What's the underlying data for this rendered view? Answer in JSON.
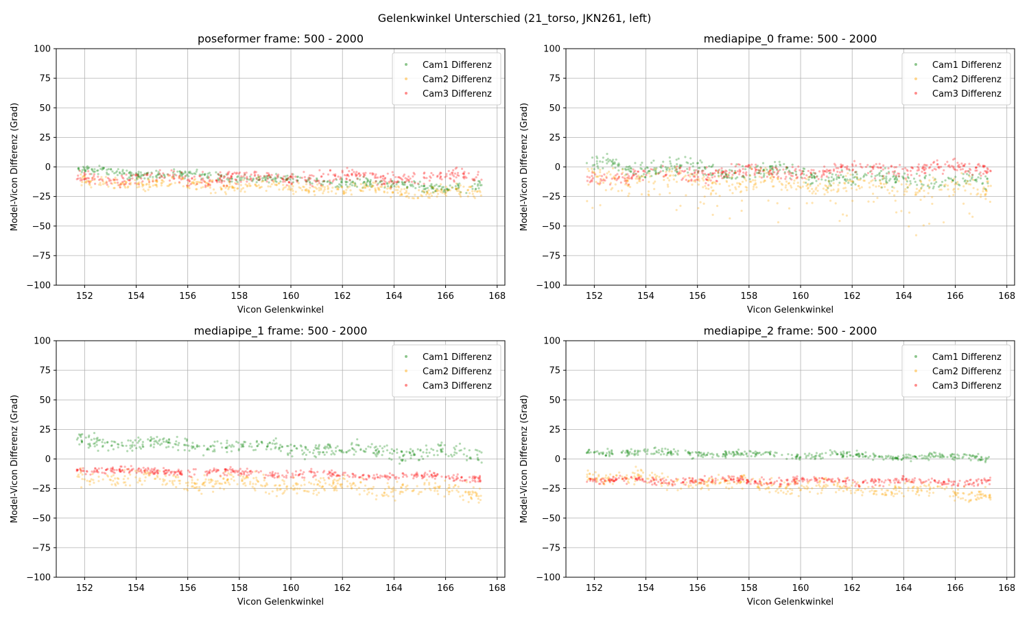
{
  "figure_title": "Gelenkwinkel Unterschied (21_torso, JKN261, left)",
  "colors": {
    "Cam1 Differenz": "#008000",
    "Cam2 Differenz": "#ffa500",
    "Cam3 Differenz": "#ff0000"
  },
  "chart_data": [
    {
      "type": "scatter",
      "title": "poseformer frame: 500 - 2000",
      "xlabel": "Vicon Gelenkwinkel",
      "ylabel": "Model-Vicon Differenz (Grad)",
      "xlim": [
        150.9,
        168.3
      ],
      "ylim": [
        -100,
        100
      ],
      "xticks": [
        152,
        154,
        156,
        158,
        160,
        162,
        164,
        166,
        168
      ],
      "yticks": [
        -100,
        -75,
        -50,
        -25,
        0,
        25,
        50,
        75,
        100
      ],
      "grid": true,
      "legend_position": "top-right",
      "series": [
        {
          "name": "Cam1 Differenz",
          "x_range": [
            151.7,
            167.4
          ],
          "center_start": -3,
          "center_end": -18,
          "spread": 4,
          "outlier_spread": 0,
          "outlier_frac": 0
        },
        {
          "name": "Cam2 Differenz",
          "x_range": [
            151.7,
            167.4
          ],
          "center_start": -12,
          "center_end": -22,
          "spread": 5,
          "outlier_spread": 0,
          "outlier_frac": 0
        },
        {
          "name": "Cam3 Differenz",
          "x_range": [
            151.7,
            167.4
          ],
          "center_start": -10,
          "center_end": -8,
          "spread": 6,
          "outlier_spread": 0,
          "outlier_frac": 0
        }
      ]
    },
    {
      "type": "scatter",
      "title": "mediapipe_0 frame: 500 - 2000",
      "xlabel": "Vicon Gelenkwinkel",
      "ylabel": "Model-Vicon Differenz (Grad)",
      "xlim": [
        150.9,
        168.3
      ],
      "ylim": [
        -100,
        100
      ],
      "xticks": [
        152,
        154,
        156,
        158,
        160,
        162,
        164,
        166,
        168
      ],
      "yticks": [
        -100,
        -75,
        -50,
        -25,
        0,
        25,
        50,
        75,
        100
      ],
      "grid": true,
      "legend_position": "top-right",
      "series": [
        {
          "name": "Cam1 Differenz",
          "x_range": [
            151.7,
            167.4
          ],
          "center_start": 2,
          "center_end": -14,
          "spread": 7,
          "outlier_spread": 0,
          "outlier_frac": 0
        },
        {
          "name": "Cam2 Differenz",
          "x_range": [
            151.7,
            167.4
          ],
          "center_start": -8,
          "center_end": -20,
          "spread": 9,
          "outlier_spread": 30,
          "outlier_frac": 0.15
        },
        {
          "name": "Cam3 Differenz",
          "x_range": [
            151.7,
            167.4
          ],
          "center_start": -8,
          "center_end": 0,
          "spread": 6,
          "outlier_spread": 0,
          "outlier_frac": 0
        }
      ]
    },
    {
      "type": "scatter",
      "title": "mediapipe_1 frame: 500 - 2000",
      "xlabel": "Vicon Gelenkwinkel",
      "ylabel": "Model-Vicon Differenz (Grad)",
      "xlim": [
        150.9,
        168.3
      ],
      "ylim": [
        -100,
        100
      ],
      "xticks": [
        152,
        154,
        156,
        158,
        160,
        162,
        164,
        166,
        168
      ],
      "yticks": [
        -100,
        -75,
        -50,
        -25,
        0,
        25,
        50,
        75,
        100
      ],
      "grid": true,
      "legend_position": "top-right",
      "series": [
        {
          "name": "Cam1 Differenz",
          "x_range": [
            151.7,
            167.4
          ],
          "center_start": 15,
          "center_end": 4,
          "spread": 6,
          "outlier_spread": 0,
          "outlier_frac": 0
        },
        {
          "name": "Cam2 Differenz",
          "x_range": [
            151.7,
            167.4
          ],
          "center_start": -15,
          "center_end": -28,
          "spread": 7,
          "outlier_spread": 0,
          "outlier_frac": 0
        },
        {
          "name": "Cam3 Differenz",
          "x_range": [
            151.7,
            167.4
          ],
          "center_start": -9,
          "center_end": -16,
          "spread": 3,
          "outlier_spread": 0,
          "outlier_frac": 0
        }
      ]
    },
    {
      "type": "scatter",
      "title": "mediapipe_2 frame: 500 - 2000",
      "xlabel": "Vicon Gelenkwinkel",
      "ylabel": "Model-Vicon Differenz (Grad)",
      "xlim": [
        150.9,
        168.3
      ],
      "ylim": [
        -100,
        100
      ],
      "xticks": [
        152,
        154,
        156,
        158,
        160,
        162,
        164,
        166,
        168
      ],
      "yticks": [
        -100,
        -75,
        -50,
        -25,
        0,
        25,
        50,
        75,
        100
      ],
      "grid": true,
      "legend_position": "top-right",
      "series": [
        {
          "name": "Cam1 Differenz",
          "x_range": [
            151.7,
            167.4
          ],
          "center_start": 6,
          "center_end": 1,
          "spread": 3,
          "outlier_spread": 0,
          "outlier_frac": 0
        },
        {
          "name": "Cam2 Differenz",
          "x_range": [
            151.7,
            167.4
          ],
          "center_start": -15,
          "center_end": -30,
          "spread": 6,
          "outlier_spread": 0,
          "outlier_frac": 0
        },
        {
          "name": "Cam3 Differenz",
          "x_range": [
            151.7,
            167.4
          ],
          "center_start": -18,
          "center_end": -19,
          "spread": 3,
          "outlier_spread": 0,
          "outlier_frac": 0
        }
      ]
    }
  ]
}
